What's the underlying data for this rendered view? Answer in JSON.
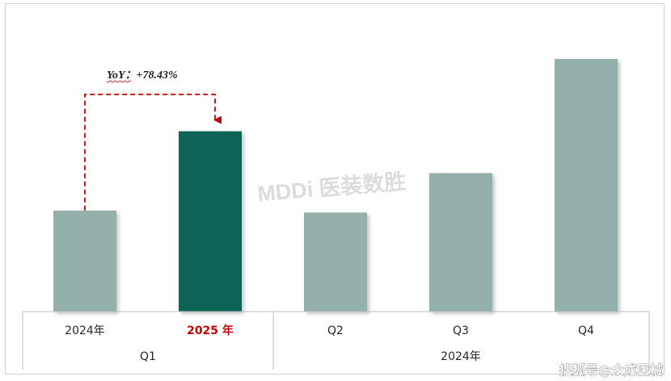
{
  "chart_data": {
    "type": "bar",
    "categories": [
      "2024年",
      "2025 年",
      "Q2",
      "Q3",
      "Q4"
    ],
    "groups": [
      {
        "label": "Q1",
        "members": [
          "2024年",
          "2025 年"
        ]
      },
      {
        "label": "2024年",
        "members": [
          "Q2",
          "Q3",
          "Q4"
        ]
      }
    ],
    "values": [
      100,
      178.43,
      98,
      137,
      250
    ],
    "highlight_index": 1,
    "colors": {
      "normal": "#93b1aa",
      "highlight": "#0b6354",
      "highlight_label": "#c00000",
      "arrow": "#c00000"
    },
    "ylim": [
      0,
      250
    ],
    "y_axis_shown": false,
    "grid": false,
    "annotation": {
      "text": "YoY：+78.43%",
      "from_index": 0,
      "to_index": 1,
      "style": "dashed-elbow-arrow"
    }
  },
  "watermark": "MDDi 医装数胜",
  "source_credit": "搜狐号@众成医械"
}
